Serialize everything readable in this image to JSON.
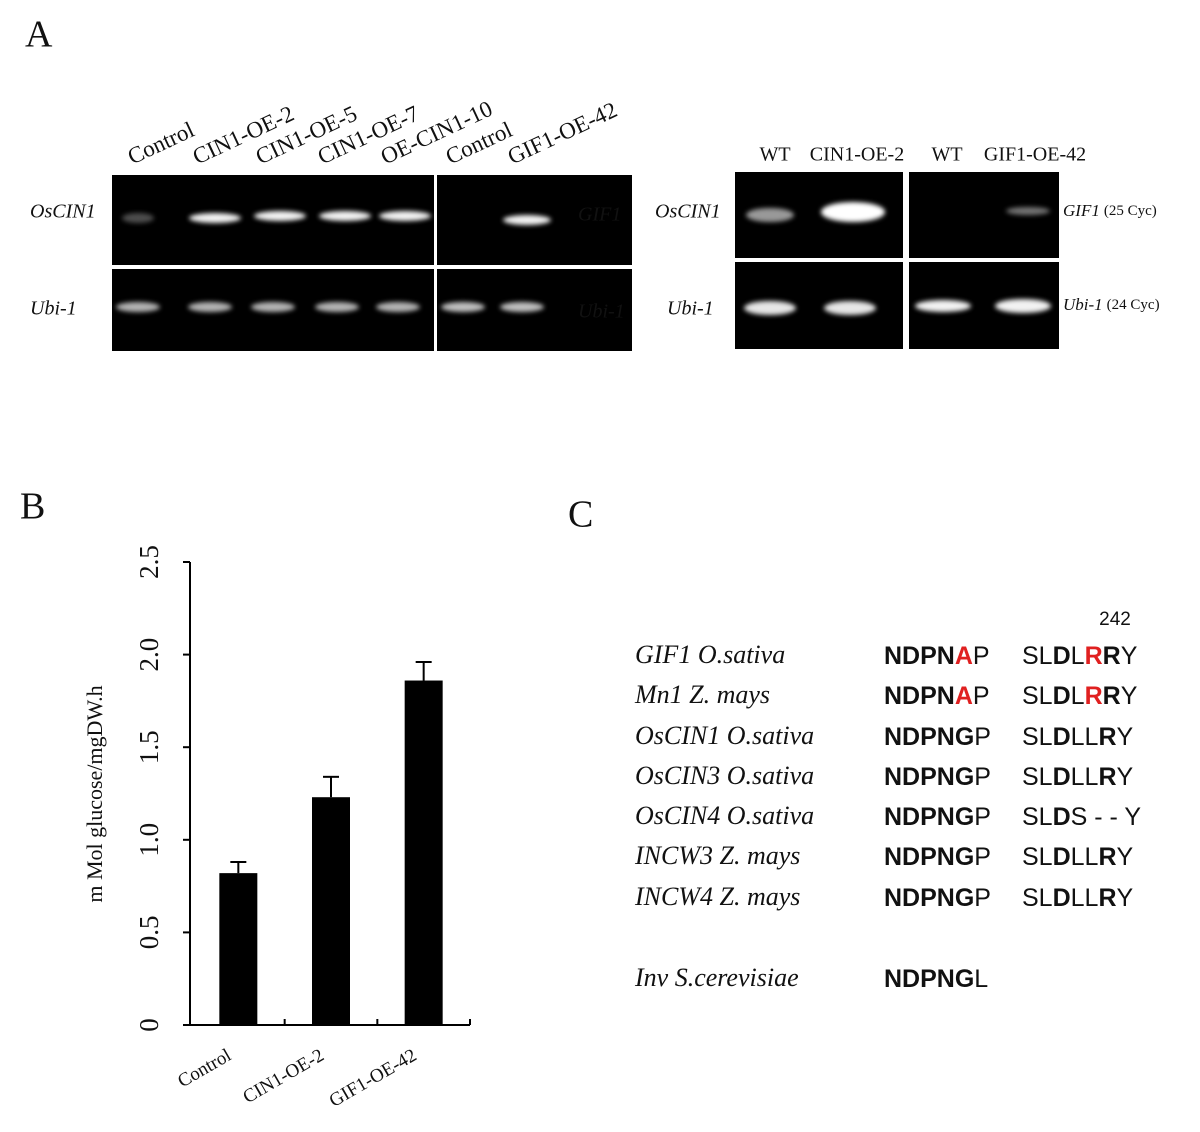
{
  "panels": {
    "a": "A",
    "b": "B",
    "c": "C"
  },
  "gel_left": {
    "lanes": [
      "Control",
      "CIN1-OE-2",
      "CIN1-OE-5",
      "CIN1-OE-7",
      "OE-CIN1-10",
      "Control",
      "GIF1-OE-42"
    ],
    "rows": [
      "OsCIN1",
      "Ubi-1"
    ],
    "right_rows": [
      "GIF1",
      "Ubi-1"
    ]
  },
  "gel_right": {
    "lanes": [
      "WT",
      "CIN1-OE-2",
      "WT",
      "GIF1-OE-42"
    ],
    "rows": [
      "OsCIN1",
      "Ubi-1"
    ],
    "right_rows": [
      {
        "gene": "GIF1",
        "note": "(25 Cyc)"
      },
      {
        "gene": "Ubi-1",
        "note": "(24 Cyc)"
      }
    ]
  },
  "chart_data": {
    "type": "bar",
    "ylabel": "m Mol glucose/mgDW.h",
    "categories": [
      "Control",
      "CIN1-OE-2",
      "GIF1-OE-42"
    ],
    "values": [
      0.82,
      1.23,
      1.86
    ],
    "errors": [
      0.06,
      0.11,
      0.1
    ],
    "color": "#000000",
    "ylim": [
      0,
      2.5
    ],
    "yticks": [
      0,
      0.5,
      {
        "value": 1,
        "label": "1.0"
      },
      1.5,
      {
        "value": 2,
        "label": "2.0"
      },
      2.5
    ]
  },
  "alignment": {
    "position": "242",
    "red": "#e02020",
    "rows": [
      {
        "name": "GIF1 O.sativa",
        "motif1": [
          {
            "t": "NDPN",
            "bold": true
          },
          {
            "t": "A",
            "bold": true,
            "red": true
          },
          {
            "t": "P"
          }
        ],
        "motif2": [
          {
            "t": "SL"
          },
          {
            "t": "D",
            "bold": true
          },
          {
            "t": "L"
          },
          {
            "t": "R",
            "bold": true,
            "red": true
          },
          {
            "t": "R",
            "bold": true
          },
          {
            "t": "Y"
          }
        ]
      },
      {
        "name": "Mn1 Z. mays",
        "motif1": [
          {
            "t": "NDPN",
            "bold": true
          },
          {
            "t": "A",
            "bold": true,
            "red": true
          },
          {
            "t": "P"
          }
        ],
        "motif2": [
          {
            "t": "SL"
          },
          {
            "t": "D",
            "bold": true
          },
          {
            "t": "L"
          },
          {
            "t": "R",
            "bold": true,
            "red": true
          },
          {
            "t": "R",
            "bold": true
          },
          {
            "t": "Y"
          }
        ]
      },
      {
        "name": "OsCIN1 O.sativa",
        "motif1": [
          {
            "t": "NDPNG",
            "bold": true
          },
          {
            "t": "P"
          }
        ],
        "motif2": [
          {
            "t": "SL"
          },
          {
            "t": "D",
            "bold": true
          },
          {
            "t": "LL"
          },
          {
            "t": "R",
            "bold": true
          },
          {
            "t": "Y"
          }
        ]
      },
      {
        "name": "OsCIN3 O.sativa",
        "motif1": [
          {
            "t": "NDPNG",
            "bold": true
          },
          {
            "t": "P"
          }
        ],
        "motif2": [
          {
            "t": "SL"
          },
          {
            "t": "D",
            "bold": true
          },
          {
            "t": "LL"
          },
          {
            "t": "R",
            "bold": true
          },
          {
            "t": "Y"
          }
        ]
      },
      {
        "name": "OsCIN4 O.sativa",
        "motif1": [
          {
            "t": "NDPNG",
            "bold": true
          },
          {
            "t": "P"
          }
        ],
        "motif2": [
          {
            "t": "SL"
          },
          {
            "t": "D",
            "bold": true
          },
          {
            "t": "S - - Y"
          }
        ]
      },
      {
        "name": "INCW3 Z. mays",
        "motif1": [
          {
            "t": "NDPNG",
            "bold": true
          },
          {
            "t": "P"
          }
        ],
        "motif2": [
          {
            "t": "SL"
          },
          {
            "t": "D",
            "bold": true
          },
          {
            "t": "LL"
          },
          {
            "t": "R",
            "bold": true
          },
          {
            "t": "Y"
          }
        ]
      },
      {
        "name": "INCW4 Z. mays",
        "motif1": [
          {
            "t": "NDPNG",
            "bold": true
          },
          {
            "t": "P"
          }
        ],
        "motif2": [
          {
            "t": "SL"
          },
          {
            "t": "D",
            "bold": true
          },
          {
            "t": "LL"
          },
          {
            "t": "R",
            "bold": true
          },
          {
            "t": "Y"
          }
        ]
      },
      {
        "name": "Inv S.cerevisiae",
        "motif1": [
          {
            "t": "NDPNG",
            "bold": true
          },
          {
            "t": "L"
          }
        ]
      }
    ]
  }
}
